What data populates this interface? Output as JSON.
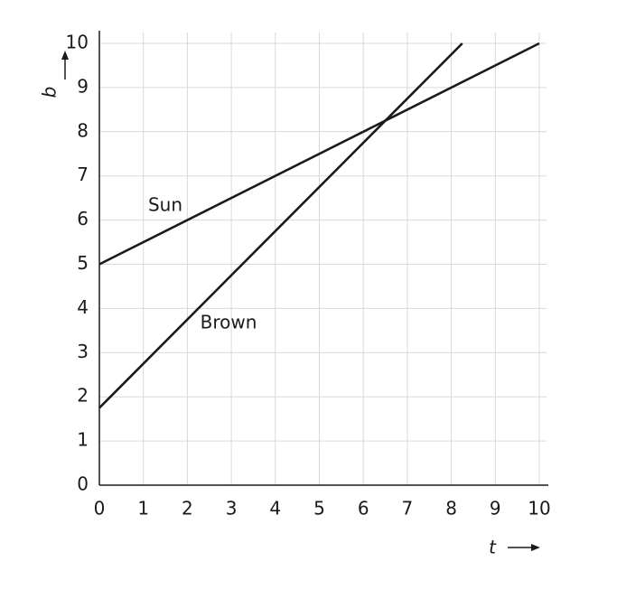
{
  "chart_data": {
    "type": "line",
    "x_label": "t",
    "y_label": "b",
    "series": [
      {
        "name": "Sun",
        "color": "#1a1a1a",
        "x": [
          0,
          10
        ],
        "values": [
          5,
          10
        ]
      },
      {
        "name": "Brown",
        "color": "#1a1a1a",
        "x": [
          0,
          8.25
        ],
        "values": [
          1.75,
          10
        ]
      }
    ],
    "xlim": [
      0,
      10
    ],
    "ylim": [
      0,
      10
    ],
    "xticks": [
      0,
      1,
      2,
      3,
      4,
      5,
      6,
      7,
      8,
      9,
      10
    ],
    "yticks": [
      0,
      1,
      2,
      3,
      4,
      5,
      6,
      7,
      8,
      9,
      10
    ],
    "grid": true
  }
}
